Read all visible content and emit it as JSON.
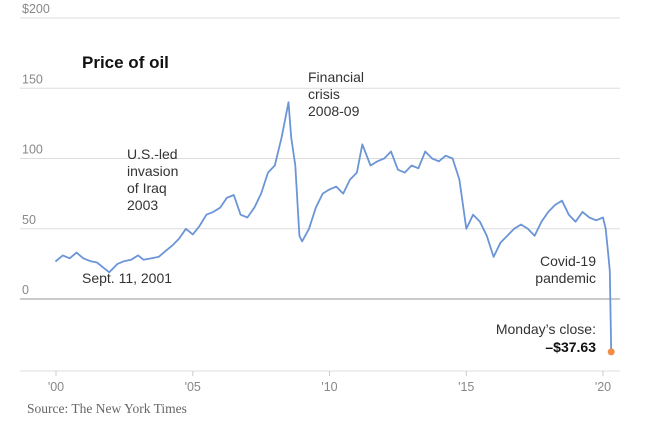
{
  "chart_data": {
    "type": "line",
    "title": "Price of oil",
    "xlabel": "",
    "ylabel": "",
    "x_tick_labels": [
      "'00",
      "'05",
      "'10",
      "'15",
      "'20"
    ],
    "y_tick_labels": [
      "$200",
      "150",
      "100",
      "50",
      "0"
    ],
    "y_ticks": [
      200,
      150,
      100,
      50,
      0
    ],
    "x_ticks": [
      2000,
      2005,
      2010,
      2015,
      2020
    ],
    "xlim": [
      1999.8,
      2020.6
    ],
    "ylim": [
      -50,
      200
    ],
    "grid": true,
    "series": [
      {
        "x": [
          2000.0,
          2000.25,
          2000.5,
          2000.75,
          2001.0,
          2001.25,
          2001.5,
          2001.75,
          2001.95,
          2002.25,
          2002.5,
          2002.75,
          2003.0,
          2003.2,
          2003.5,
          2003.75,
          2004.0,
          2004.25,
          2004.5,
          2004.75,
          2005.0,
          2005.25,
          2005.5,
          2005.75,
          2006.0,
          2006.25,
          2006.5,
          2006.75,
          2007.0,
          2007.25,
          2007.5,
          2007.75,
          2008.0,
          2008.25,
          2008.5,
          2008.6,
          2008.75,
          2008.9,
          2009.0,
          2009.25,
          2009.5,
          2009.75,
          2010.0,
          2010.25,
          2010.5,
          2010.75,
          2011.0,
          2011.2,
          2011.3,
          2011.5,
          2011.75,
          2012.0,
          2012.25,
          2012.5,
          2012.75,
          2013.0,
          2013.25,
          2013.5,
          2013.75,
          2014.0,
          2014.25,
          2014.5,
          2014.75,
          2015.0,
          2015.25,
          2015.5,
          2015.75,
          2016.0,
          2016.25,
          2016.5,
          2016.75,
          2017.0,
          2017.25,
          2017.5,
          2017.75,
          2018.0,
          2018.25,
          2018.5,
          2018.75,
          2019.0,
          2019.25,
          2019.5,
          2019.75,
          2020.0,
          2020.1,
          2020.2,
          2020.25,
          2020.3
        ],
        "y": [
          27,
          31,
          29,
          33,
          29,
          27,
          26,
          22,
          19,
          25,
          27,
          28,
          31,
          28,
          29,
          30,
          34,
          38,
          43,
          50,
          46,
          52,
          60,
          62,
          65,
          72,
          74,
          60,
          58,
          65,
          75,
          90,
          95,
          115,
          140,
          115,
          95,
          45,
          41,
          50,
          65,
          75,
          78,
          80,
          75,
          85,
          90,
          110,
          105,
          95,
          98,
          100,
          105,
          92,
          90,
          95,
          93,
          105,
          100,
          98,
          102,
          100,
          85,
          50,
          60,
          55,
          45,
          30,
          40,
          45,
          50,
          53,
          50,
          45,
          55,
          62,
          67,
          70,
          60,
          55,
          62,
          58,
          56,
          58,
          50,
          30,
          20,
          -37.63
        ]
      }
    ],
    "annotations": [
      {
        "text": [
          "U.S.-led",
          "invasion",
          "of Iraq",
          "2003"
        ]
      },
      {
        "text": [
          "Financial",
          "crisis",
          "2008-09"
        ]
      },
      {
        "text": [
          "Sept. 11, 2001"
        ]
      },
      {
        "text": [
          "Covid-19",
          "pandemic"
        ]
      },
      {
        "text": [
          "Monday’s close:",
          "–$37.63"
        ]
      }
    ],
    "highlight_point": {
      "x": 2020.3,
      "y": -37.63
    },
    "colors": {
      "line": "#6b95d6",
      "point": "#f28b46",
      "grid": "#dddddd",
      "zero_line": "#aaaaaa",
      "text": "#333333",
      "tick": "#888888"
    }
  },
  "source": "Source:  The New York Times"
}
